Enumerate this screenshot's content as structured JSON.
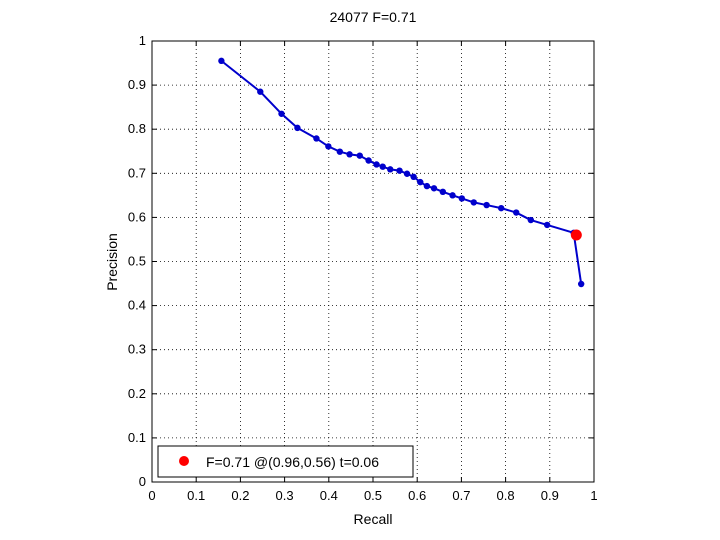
{
  "chart_data": {
    "type": "line",
    "title": "24077 F=0.71",
    "xlabel": "Recall",
    "ylabel": "Precision",
    "xlim": [
      0,
      1
    ],
    "ylim": [
      0,
      1
    ],
    "xticks": [
      "0",
      "0.1",
      "0.2",
      "0.3",
      "0.4",
      "0.5",
      "0.6",
      "0.7",
      "0.8",
      "0.9",
      "1"
    ],
    "yticks": [
      "0",
      "0.1",
      "0.2",
      "0.3",
      "0.4",
      "0.5",
      "0.6",
      "0.7",
      "0.8",
      "0.9",
      "1"
    ],
    "grid": true,
    "legend_position": "bottom-left",
    "series": [
      {
        "color": "#0000cc",
        "x": [
          0.157,
          0.245,
          0.293,
          0.329,
          0.372,
          0.399,
          0.425,
          0.447,
          0.47,
          0.49,
          0.508,
          0.522,
          0.539,
          0.56,
          0.577,
          0.592,
          0.607,
          0.622,
          0.638,
          0.658,
          0.68,
          0.701,
          0.728,
          0.757,
          0.79,
          0.824,
          0.857,
          0.894,
          0.954,
          0.971
        ],
        "y": [
          0.955,
          0.885,
          0.835,
          0.803,
          0.779,
          0.761,
          0.749,
          0.743,
          0.74,
          0.729,
          0.72,
          0.715,
          0.709,
          0.706,
          0.699,
          0.692,
          0.68,
          0.671,
          0.666,
          0.658,
          0.65,
          0.643,
          0.634,
          0.628,
          0.621,
          0.611,
          0.594,
          0.583,
          0.565,
          0.449
        ]
      }
    ],
    "highlight": {
      "x": 0.96,
      "y": 0.56,
      "color": "#ff0000",
      "label": "F=0.71 @(0.96,0.56) t=0.06"
    }
  }
}
